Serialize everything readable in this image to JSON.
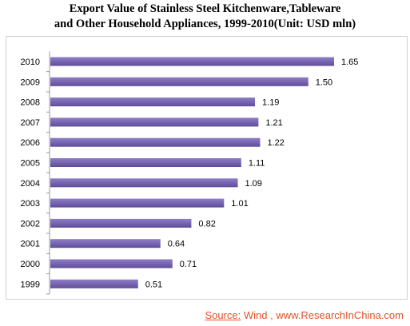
{
  "title_line1": "Export Value of Stainless Steel Kitchenware,Tableware",
  "title_line2": "and Other Household Appliances, 1999-2010(Unit: USD mln)",
  "source_label": "Source:",
  "source_text": " Wind , www.ResearchInChina.com",
  "colors": {
    "bar": "#7b68b5",
    "bar_dark": "#5d4b97",
    "source": "#e0522a"
  },
  "chart_data": {
    "type": "bar",
    "orientation": "horizontal",
    "title": "Export Value of Stainless Steel Kitchenware,Tableware and Other Household Appliances, 1999-2010(Unit: USD mln)",
    "categories": [
      "2010",
      "2009",
      "2008",
      "2007",
      "2006",
      "2005",
      "2004",
      "2003",
      "2002",
      "2001",
      "2000",
      "1999"
    ],
    "values": [
      1.65,
      1.5,
      1.19,
      1.21,
      1.22,
      1.11,
      1.09,
      1.01,
      0.82,
      0.64,
      0.71,
      0.51
    ],
    "value_labels": [
      "1.65",
      "1.50",
      "1.19",
      "1.21",
      "1.22",
      "1.11",
      "1.09",
      "1.01",
      "0.82",
      "0.64",
      "0.71",
      "0.51"
    ],
    "xlim": [
      0,
      1.65
    ],
    "grid": false,
    "legend": "none"
  }
}
